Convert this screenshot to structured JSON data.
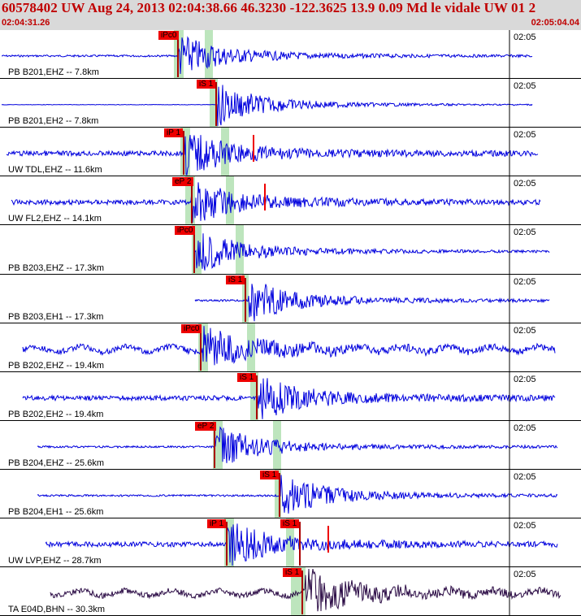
{
  "header": {
    "title": "60578402 UW Aug 24, 2013 02:04:38.66   46.3230 -122.3625 13.9 0.09 Md le vidale UW 01   2",
    "time_start": "02:04:31.26",
    "time_end": "02:05:04.04"
  },
  "colors": {
    "header_bg": "#d9d9d9",
    "header_text": "#c00000",
    "waveform": "#0000dd",
    "waveform_bhn": "#2a0a44",
    "pick_flag": "#ee0000",
    "pick_window": "#bde5bd"
  },
  "tick_label": "02:05",
  "traces": [
    {
      "label": "PB B201,EHZ -- 7.8km",
      "picks": [
        {
          "label": "iPc0",
          "type": "P"
        }
      ],
      "amp": "low"
    },
    {
      "label": "PB B201,EH2 -- 7.8km",
      "picks": [
        {
          "label": "iS 1",
          "type": "S"
        }
      ],
      "amp": "flat"
    },
    {
      "label": "UW TDL,EHZ -- 11.6km",
      "picks": [
        {
          "label": "iP 1",
          "type": "P"
        }
      ],
      "amp": "noisy"
    },
    {
      "label": "UW FL2,EHZ -- 14.1km",
      "picks": [
        {
          "label": "eP 2",
          "type": "P"
        }
      ],
      "amp": "noisy"
    },
    {
      "label": "PB B203,EHZ -- 17.3km",
      "picks": [
        {
          "label": "iPc0",
          "type": "P"
        }
      ],
      "amp": "low"
    },
    {
      "label": "PB B203,EH1 -- 17.3km",
      "picks": [
        {
          "label": "iS 1",
          "type": "S"
        }
      ],
      "amp": "low"
    },
    {
      "label": "PB B202,EHZ -- 19.4km",
      "picks": [
        {
          "label": "iPc0",
          "type": "P"
        }
      ],
      "amp": "wavy"
    },
    {
      "label": "PB B202,EH2 -- 19.4km",
      "picks": [
        {
          "label": "iS 1",
          "type": "S"
        }
      ],
      "amp": "noisy"
    },
    {
      "label": "PB B204,EHZ -- 25.6km",
      "picks": [
        {
          "label": "eP 2",
          "type": "P"
        }
      ],
      "amp": "low"
    },
    {
      "label": "PB B204,EH1 -- 25.6km",
      "picks": [
        {
          "label": "iS 1",
          "type": "S"
        }
      ],
      "amp": "low"
    },
    {
      "label": "UW LVP,EHZ -- 28.7km",
      "picks": [
        {
          "label": "iP 1",
          "type": "P"
        },
        {
          "label": "iS 1",
          "type": "S"
        }
      ],
      "amp": "noisy"
    },
    {
      "label": "TA E04D,BHN -- 30.3km",
      "picks": [
        {
          "label": "iS 1",
          "type": "S"
        }
      ],
      "amp": "wavy"
    }
  ]
}
